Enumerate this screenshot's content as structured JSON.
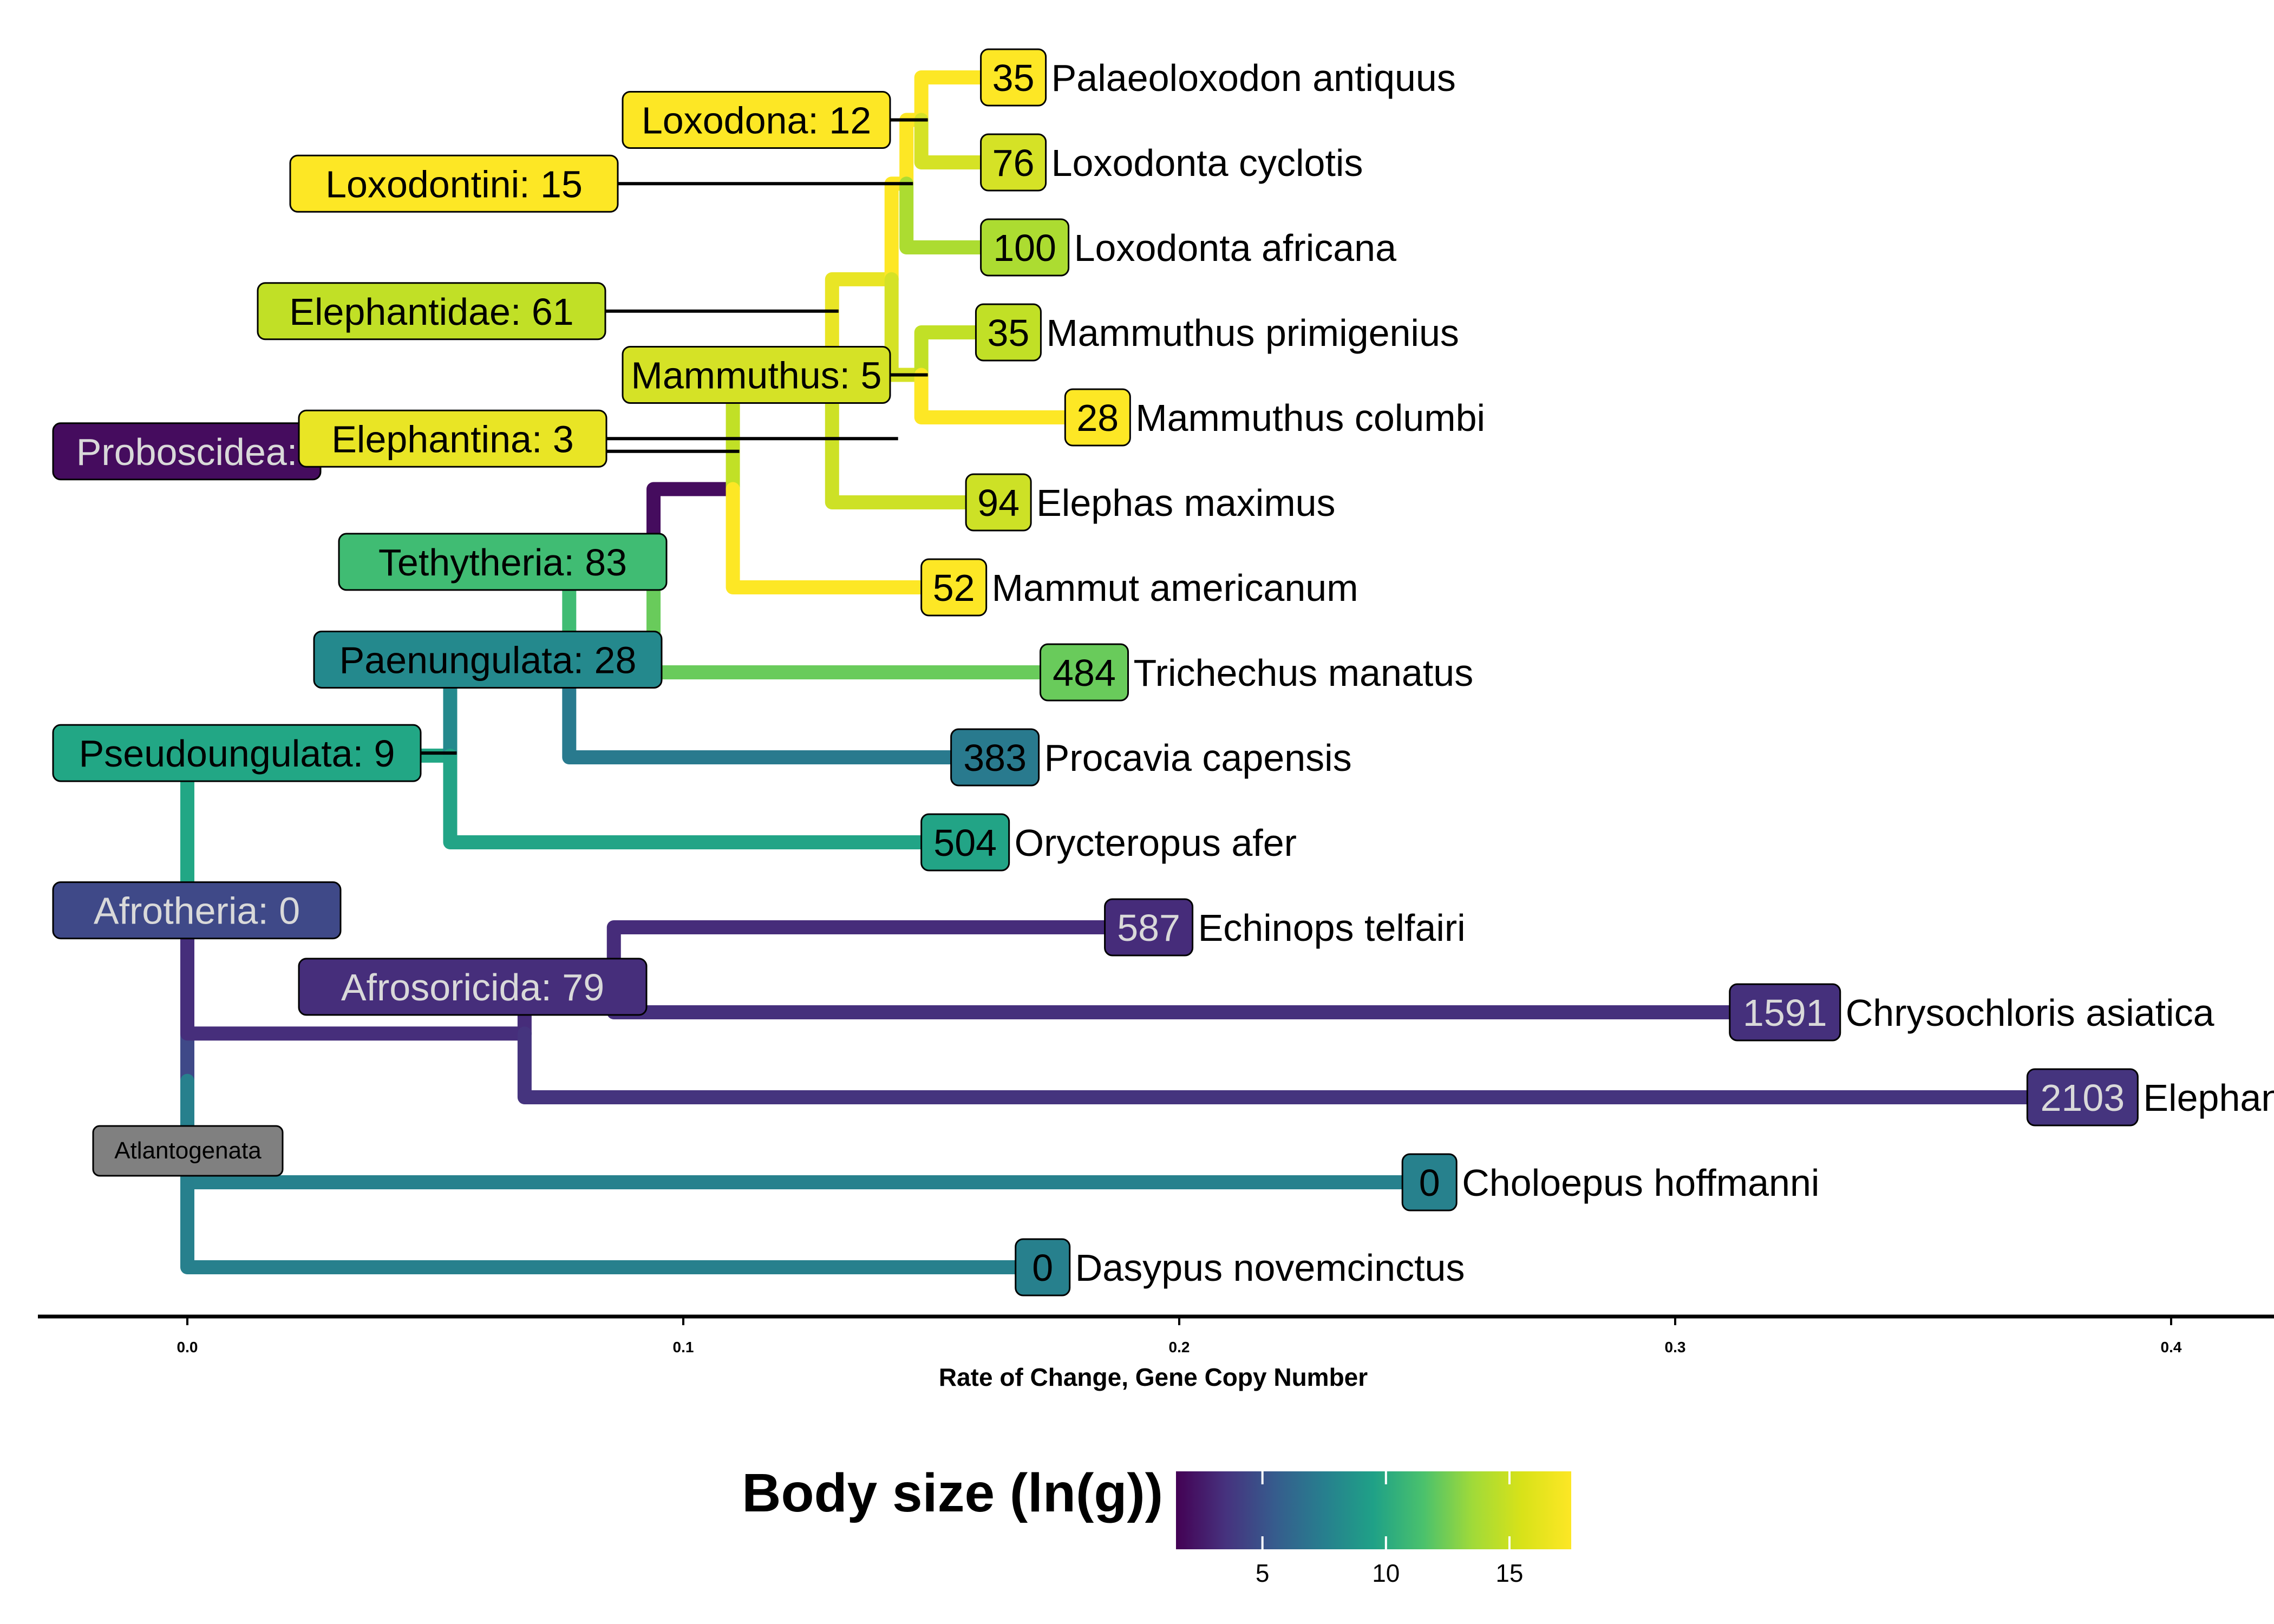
{
  "chart_data": {
    "type": "tree",
    "xlabel": "Rate of Change, Gene Copy Number",
    "xlim": [
      -0.03,
      0.42
    ],
    "xticks": [
      0.0,
      0.1,
      0.2,
      0.3,
      0.4
    ],
    "xtick_labels": [
      "0.0",
      "0.1",
      "0.2",
      "0.3",
      "0.4"
    ],
    "colorbar": {
      "title": "Body size (ln(g))",
      "range": [
        1.5,
        17.5
      ],
      "ticks": [
        5,
        10,
        15
      ],
      "tick_labels": [
        "5",
        "10",
        "15"
      ]
    },
    "tips": [
      {
        "name": "Palaeoloxodon antiquus",
        "count": "35",
        "x": 0.16,
        "size": 17.5,
        "order": 1
      },
      {
        "name": "Loxodonta cyclotis",
        "count": "76",
        "x": 0.16,
        "size": 16.5,
        "order": 2
      },
      {
        "name": "Loxodonta africana",
        "count": "100",
        "x": 0.16,
        "size": 15.5,
        "order": 3
      },
      {
        "name": "Mammuthus primigenius",
        "count": "35",
        "x": 0.159,
        "size": 16.0,
        "order": 4
      },
      {
        "name": "Mammuthus columbi",
        "count": "28",
        "x": 0.177,
        "size": 17.5,
        "order": 5
      },
      {
        "name": "Elephas maximus",
        "count": "94",
        "x": 0.157,
        "size": 16.3,
        "order": 6
      },
      {
        "name": "Mammut americanum",
        "count": "52",
        "x": 0.148,
        "size": 17.5,
        "order": 7
      },
      {
        "name": "Trichechus manatus",
        "count": "484",
        "x": 0.172,
        "size": 13.8,
        "order": 8
      },
      {
        "name": "Procavia capensis",
        "count": "383",
        "x": 0.154,
        "size": 8.0,
        "order": 9
      },
      {
        "name": "Orycteropus afer",
        "count": "504",
        "x": 0.148,
        "size": 10.8,
        "order": 10
      },
      {
        "name": "Echinops telfairi",
        "count": "587",
        "x": 0.185,
        "size": 3.5,
        "order": 11
      },
      {
        "name": "Chrysochloris asiatica",
        "count": "1591",
        "x": 0.311,
        "size": 3.7,
        "order": 12
      },
      {
        "name": "Elephantulus edwardii",
        "count": "2103",
        "x": 0.371,
        "size": 3.9,
        "order": 13
      },
      {
        "name": "Choloepus hoffmanni",
        "count": "0",
        "x": 0.245,
        "size": 8.5,
        "order": 14
      },
      {
        "name": "Dasypus novemcinctus",
        "count": "0",
        "x": 0.167,
        "size": 8.4,
        "order": 15
      }
    ],
    "nodes": [
      {
        "id": "atlantogenata",
        "name": "Atlantogenata",
        "count": "",
        "x": 0.0,
        "size": null,
        "children": [
          "afrotheria",
          "Choloepus hoffmanni",
          "Dasypus novemcinctus"
        ]
      },
      {
        "id": "afrotheria",
        "name": "Afrotheria",
        "count": "0",
        "x": 0.0,
        "size": 5.0,
        "children": [
          "pseudoungulata",
          "afrosoricida"
        ]
      },
      {
        "id": "pseudoungulata",
        "name": "Pseudoungulata",
        "count": "9",
        "x": 0.053,
        "size": 11.0,
        "children": [
          "paenungulata",
          "Orycteropus afer"
        ]
      },
      {
        "id": "paenungulata",
        "name": "Paenungulata",
        "count": "28",
        "x": 0.077,
        "size": 9.0,
        "children": [
          "tethytheria",
          "Procavia capensis"
        ]
      },
      {
        "id": "tethytheria",
        "name": "Tethytheria",
        "count": "83",
        "x": 0.094,
        "size": 12.5,
        "children": [
          "proboscidea",
          "Trichechus manatus"
        ]
      },
      {
        "id": "proboscidea",
        "name": "Proboscidea",
        "count": "",
        "x": 0.11,
        "size": 2.0,
        "children": [
          "elephantidae",
          "Mammut americanum"
        ]
      },
      {
        "id": "elephantidae",
        "name": "Elephantidae",
        "count": "61",
        "x": 0.13,
        "size": 16.0,
        "children": [
          "elephantina",
          "Elephas maximus"
        ]
      },
      {
        "id": "elephantina",
        "name": "Elephantina",
        "count": "3",
        "x": 0.142,
        "size": 17.0,
        "children": [
          "loxodontini",
          "mammuthus"
        ]
      },
      {
        "id": "loxodontini",
        "name": "Loxodontini",
        "count": "15",
        "x": 0.145,
        "size": 17.5,
        "children": [
          "loxodona",
          "Loxodonta africana"
        ]
      },
      {
        "id": "loxodona",
        "name": "Loxodona",
        "count": "12",
        "x": 0.148,
        "size": 17.5,
        "children": [
          "Palaeoloxodon antiquus",
          "Loxodonta cyclotis"
        ]
      },
      {
        "id": "mammuthus",
        "name": "Mammuthus",
        "count": "5",
        "x": 0.148,
        "size": 16.5,
        "children": [
          "Mammuthus primigenius",
          "Mammuthus columbi"
        ]
      },
      {
        "id": "afrosoricida",
        "name": "Afrosoricida",
        "count": "79",
        "x": 0.068,
        "size": 3.6,
        "children": [
          "echinops_chryso",
          "Elephantulus edwardii"
        ]
      },
      {
        "id": "echinops_chryso",
        "name": "",
        "count": "",
        "x": 0.086,
        "size": 3.5,
        "children": [
          "Echinops telfairi",
          "Chrysochloris asiatica"
        ]
      }
    ],
    "node_label_text": {
      "loxodona": "Loxodona: 12",
      "loxodontini": "Loxodontini: 15",
      "elephantidae": "Elephantidae: 61",
      "mammuthus": "Mammuthus: 5",
      "proboscidea": "Proboscidea:",
      "elephantina": "Elephantina: 3",
      "tethytheria": "Tethytheria: 83",
      "paenungulata": "Paenungulata: 28",
      "pseudoungulata": "Pseudoungulata: 9",
      "afrotheria": "Afrotheria: 0",
      "afrosoricida": "Afrosoricida: 79",
      "atlantogenata": "Atlantogenata"
    }
  }
}
